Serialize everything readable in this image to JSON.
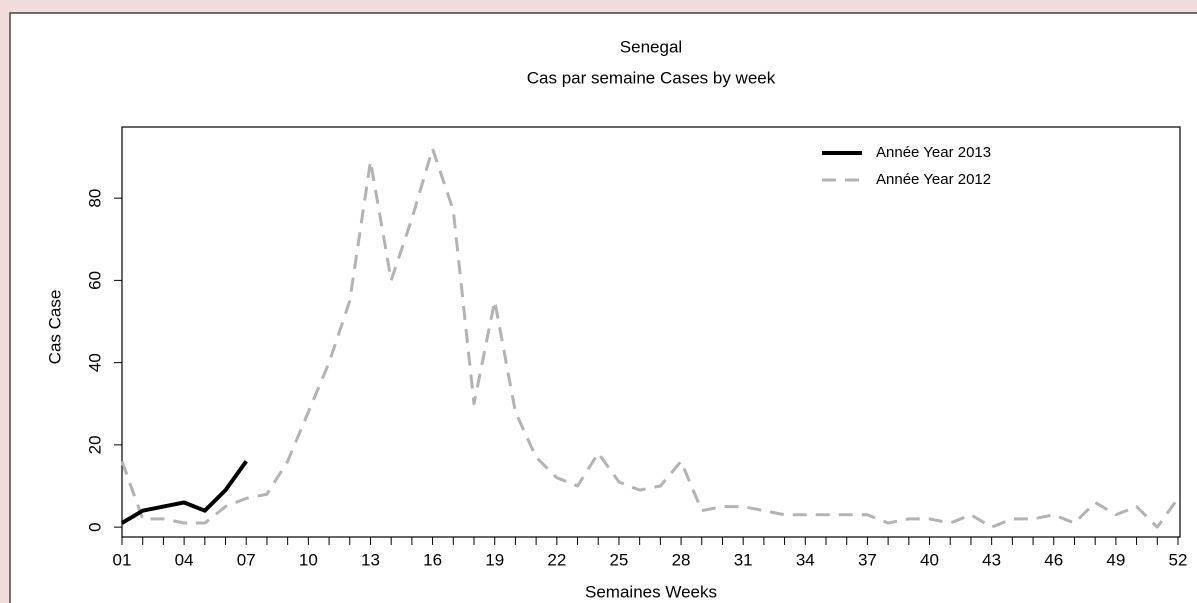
{
  "chart_data": {
    "type": "line",
    "title": "Senegal",
    "subtitle": "Cas par semaine Cases by week",
    "x_label": "Semaines Weeks",
    "y_label": "Cas Case",
    "x": [
      1,
      2,
      3,
      4,
      5,
      6,
      7,
      8,
      9,
      10,
      11,
      12,
      13,
      14,
      15,
      16,
      17,
      18,
      19,
      20,
      21,
      22,
      23,
      24,
      25,
      26,
      27,
      28,
      29,
      30,
      31,
      32,
      33,
      34,
      35,
      36,
      37,
      38,
      39,
      40,
      41,
      42,
      43,
      44,
      45,
      46,
      47,
      48,
      49,
      50,
      51,
      52
    ],
    "series": [
      {
        "name": "Année Year 2013",
        "color": "#000000",
        "style": "solid",
        "values": [
          1,
          4,
          5,
          6,
          4,
          9,
          16,
          null,
          null,
          null,
          null,
          null,
          null,
          null,
          null,
          null,
          null,
          null,
          null,
          null,
          null,
          null,
          null,
          null,
          null,
          null,
          null,
          null,
          null,
          null,
          null,
          null,
          null,
          null,
          null,
          null,
          null,
          null,
          null,
          null,
          null,
          null,
          null,
          null,
          null,
          null,
          null,
          null,
          null,
          null,
          null,
          null
        ]
      },
      {
        "name": "Année Year 2012",
        "color": "#b3b3b3",
        "style": "dashed",
        "values": [
          16,
          2,
          2,
          1,
          1,
          5,
          7,
          8,
          16,
          28,
          40,
          55,
          89,
          60,
          75,
          92,
          77,
          30,
          55,
          28,
          17,
          12,
          10,
          18,
          11,
          9,
          10,
          16,
          4,
          5,
          5,
          4,
          3,
          3,
          3,
          3,
          3,
          1,
          2,
          2,
          1,
          3,
          0,
          2,
          2,
          3,
          1,
          6,
          3,
          5,
          0,
          7
        ]
      }
    ],
    "xlim": [
      1,
      52
    ],
    "ylim": [
      -2.4,
      97.3
    ],
    "xticks": [
      {
        "value": 1,
        "label": "01"
      },
      {
        "value": 4,
        "label": "04"
      },
      {
        "value": 7,
        "label": "07"
      },
      10,
      13,
      16,
      19,
      22,
      25,
      28,
      31,
      34,
      37,
      40,
      43,
      46,
      49,
      52
    ],
    "xminorticks": [
      1,
      2,
      3,
      4,
      5,
      6,
      7,
      8,
      9,
      10,
      11,
      12,
      13,
      14,
      15,
      16,
      17,
      18,
      19,
      20,
      21,
      22,
      23,
      24,
      25,
      26,
      27,
      28,
      29,
      30,
      31,
      32,
      33,
      34,
      35,
      36,
      37,
      38,
      39,
      40,
      41,
      42,
      43,
      44,
      45,
      46,
      47,
      48,
      49,
      50,
      51,
      52
    ],
    "yticks": [
      0,
      20,
      40,
      60,
      80
    ],
    "legend": "top-right"
  }
}
